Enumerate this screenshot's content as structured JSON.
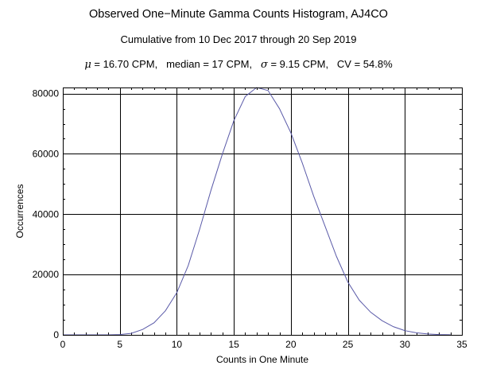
{
  "chart_data": {
    "type": "line",
    "title": "Observed One−Minute Gamma Counts Histogram, AJ4CO",
    "subtitle": "Cumulative from 10 Dec 2017 through 20 Sep 2019",
    "stats": {
      "mu_symbol": "μ",
      "mu_text": " = 16.70 CPM,",
      "median_text": "median = 17 CPM,",
      "sigma_symbol": "σ",
      "sigma_text": " = 9.15 CPM,",
      "cv_text": "CV = 54.8%"
    },
    "xlabel": "Counts in One Minute",
    "ylabel": "Occurrences",
    "xlim": [
      0,
      35
    ],
    "ylim": [
      0,
      82000
    ],
    "xticks": [
      0,
      5,
      10,
      15,
      20,
      25,
      30,
      35
    ],
    "yticks": [
      0,
      20000,
      40000,
      60000,
      80000
    ],
    "grid": true,
    "line_color": "#5a5aa8",
    "series": [
      {
        "x": [
          0,
          1,
          2,
          3,
          4,
          5,
          6,
          7,
          8,
          9,
          10,
          11,
          12,
          13,
          14,
          15,
          16,
          17,
          18,
          19,
          20,
          21,
          22,
          23,
          24,
          25,
          26,
          27,
          28,
          29,
          30,
          31,
          32,
          33,
          34
        ],
        "values": [
          0,
          0,
          0,
          0,
          10,
          100,
          500,
          1800,
          4000,
          8000,
          14000,
          23000,
          35000,
          48000,
          60000,
          71000,
          79000,
          82000,
          81000,
          75000,
          67000,
          57000,
          46000,
          36000,
          26000,
          17500,
          11500,
          7500,
          4700,
          2700,
          1400,
          700,
          300,
          100,
          30
        ]
      }
    ]
  }
}
